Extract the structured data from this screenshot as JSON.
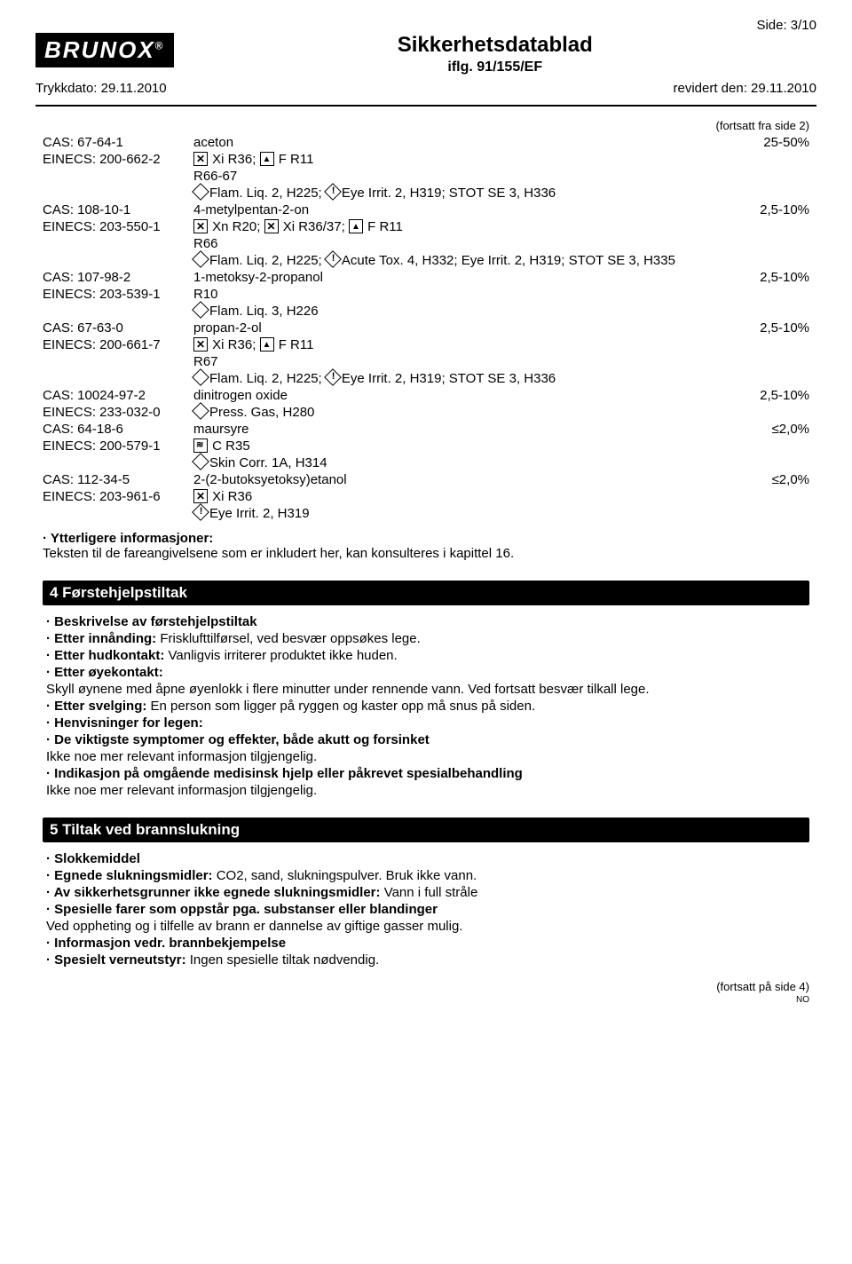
{
  "header": {
    "side": "Side: 3/10",
    "logo_text": "BRUNOX",
    "logo_reg": "®",
    "title": "Sikkerhetsdatablad",
    "subtitle": "iflg. 91/155/EF",
    "print_date": "Trykkdato: 29.11.2010",
    "revised": "revidert den: 29.11.2010"
  },
  "cont_from": "(fortsatt fra side 2)",
  "ingredients": [
    {
      "cas": "CAS: 67-64-1",
      "einecs": "EINECS: 200-662-2",
      "name": "aceton",
      "line1_a": "Xi R36;",
      "line1_b": "F R11",
      "line2": "R66-67",
      "line3_a": "Flam. Liq. 2, H225;",
      "line3_b": "Eye Irrit. 2, H319; STOT SE 3, H336",
      "pct": "25-50%"
    },
    {
      "cas": "CAS: 108-10-1",
      "einecs": "EINECS: 203-550-1",
      "name": "4-metylpentan-2-on",
      "line1_a": "Xn R20;",
      "line1_b": "Xi R36/37;",
      "line1_c": "F R11",
      "line2": "R66",
      "line3_a": "Flam. Liq. 2, H225;",
      "line3_b": "Acute Tox. 4, H332; Eye Irrit. 2, H319; STOT SE 3, H335",
      "pct": "2,5-10%"
    },
    {
      "cas": "CAS: 107-98-2",
      "einecs": "EINECS: 203-539-1",
      "name": "1-metoksy-2-propanol",
      "line1": "R10",
      "line2_a": "Flam. Liq. 3, H226",
      "pct": "2,5-10%"
    },
    {
      "cas": "CAS: 67-63-0",
      "einecs": "EINECS: 200-661-7",
      "name": "propan-2-ol",
      "line1_a": "Xi R36;",
      "line1_b": "F R11",
      "line2": "R67",
      "line3_a": "Flam. Liq. 2, H225;",
      "line3_b": "Eye Irrit. 2, H319; STOT SE 3, H336",
      "pct": "2,5-10%"
    },
    {
      "cas": "CAS: 10024-97-2",
      "einecs": "EINECS: 233-032-0",
      "name": "dinitrogen oxide",
      "line1_a": "Press. Gas, H280",
      "pct": "2,5-10%"
    },
    {
      "cas": "CAS: 64-18-6",
      "einecs": "EINECS: 200-579-1",
      "name": "maursyre",
      "line1_a": "C R35",
      "line2_a": "Skin Corr. 1A, H314",
      "pct": "≤2,0%"
    },
    {
      "cas": "CAS: 112-34-5",
      "einecs": "EINECS: 203-961-6",
      "name": "2-(2-butoksyetoksy)etanol",
      "line1_a": "Xi R36",
      "line2_a": "Eye Irrit. 2, H319",
      "pct": "≤2,0%"
    }
  ],
  "further_info": {
    "label": "Ytterligere informasjoner:",
    "text": "Teksten til de fareangivelsene som er inkludert her, kan konsulteres i kapittel 16."
  },
  "section4": {
    "title": "4 Førstehjelpstiltak",
    "l1": "Beskrivelse av førstehjelpstiltak",
    "l2a": "Etter innånding:",
    "l2b": "Frisklufttilførsel, ved besvær oppsøkes lege.",
    "l3a": "Etter hudkontakt:",
    "l3b": "Vanligvis irriterer produktet ikke huden.",
    "l4a": "Etter øyekontakt:",
    "l4b": "Skyll øynene med åpne øyenlokk i flere minutter under rennende vann. Ved fortsatt besvær tilkall lege.",
    "l5a": "Etter svelging:",
    "l5b": "En person som ligger på ryggen og kaster opp må snus på siden.",
    "l6": "Henvisninger for legen:",
    "l7": "De viktigste symptomer og effekter, både akutt og forsinket",
    "l7b": "Ikke noe mer relevant informasjon tilgjengelig.",
    "l8": "Indikasjon på omgående medisinsk hjelp eller påkrevet spesialbehandling",
    "l8b": "Ikke noe mer relevant informasjon tilgjengelig."
  },
  "section5": {
    "title": "5 Tiltak ved brannslukning",
    "l1": "Slokkemiddel",
    "l2a": "Egnede slukningsmidler:",
    "l2b": "CO2, sand, slukningspulver. Bruk ikke vann.",
    "l3a": "Av sikkerhetsgrunner ikke egnede slukningsmidler:",
    "l3b": "Vann i full stråle",
    "l4a": "Spesielle farer som oppstår pga. substanser eller blandinger",
    "l4b": "Ved oppheting og i tilfelle av brann er dannelse av giftige gasser mulig.",
    "l5": "Informasjon vedr. brannbekjempelse",
    "l6a": "Spesielt verneutstyr:",
    "l6b": "Ingen spesielle tiltak nødvendig."
  },
  "cont_to": "(fortsatt på side 4)",
  "lang": "NO"
}
